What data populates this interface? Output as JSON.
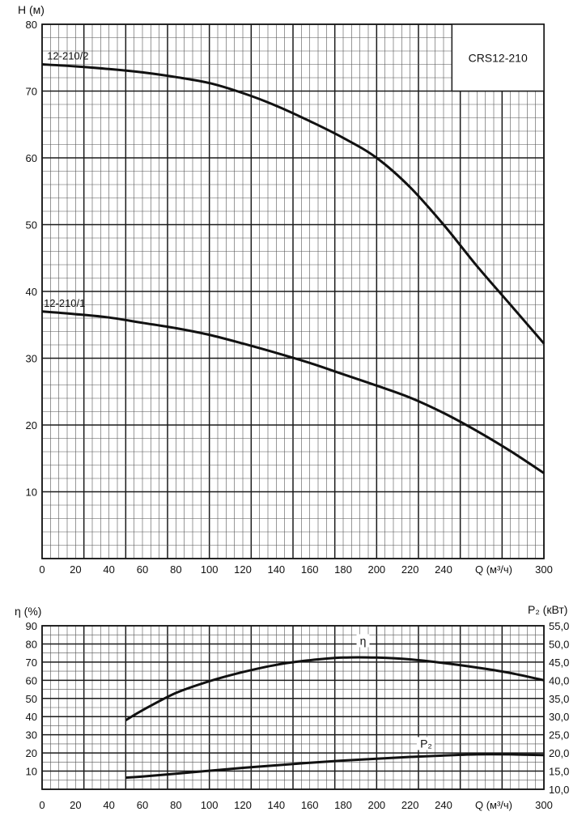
{
  "chart_data": [
    {
      "type": "line",
      "title": "",
      "model_label": "CRS12-210",
      "xlabel": "Q (м³/ч)",
      "ylabel": "H (м)",
      "xlim": [
        0,
        300
      ],
      "ylim": [
        0,
        80
      ],
      "x_ticks": [
        0,
        20,
        40,
        60,
        80,
        100,
        120,
        140,
        160,
        180,
        200,
        220,
        240,
        300
      ],
      "y_ticks": [
        0,
        10,
        20,
        30,
        40,
        50,
        60,
        70,
        80
      ],
      "grid": true,
      "series": [
        {
          "name": "12-210/2",
          "x": [
            0,
            20,
            40,
            60,
            80,
            100,
            120,
            140,
            160,
            180,
            200,
            220,
            240,
            260,
            280,
            300
          ],
          "y": [
            74,
            73.7,
            73.3,
            72.8,
            72.1,
            71.2,
            69.7,
            67.8,
            65.5,
            63,
            60,
            55.6,
            50,
            43.8,
            38,
            32.2
          ]
        },
        {
          "name": "12-210/1",
          "x": [
            0,
            20,
            40,
            60,
            80,
            100,
            120,
            140,
            160,
            180,
            200,
            220,
            240,
            260,
            280,
            300
          ],
          "y": [
            37,
            36.6,
            36.1,
            35.3,
            34.5,
            33.5,
            32.2,
            30.8,
            29.3,
            27.6,
            25.9,
            24.1,
            21.8,
            19.1,
            16.1,
            12.8
          ]
        }
      ]
    },
    {
      "type": "line",
      "title": "",
      "xlabel": "Q (м³/ч)",
      "ylabel_left": "η (%)",
      "ylabel_right": "P₂ (кВт)",
      "xlim": [
        0,
        300
      ],
      "ylim_left": [
        0,
        90
      ],
      "ylim_right": [
        10,
        55
      ],
      "x_ticks": [
        0,
        20,
        40,
        60,
        80,
        100,
        120,
        140,
        160,
        180,
        200,
        220,
        240,
        300
      ],
      "y_ticks_left": [
        10,
        20,
        30,
        40,
        50,
        60,
        70,
        80,
        90
      ],
      "y_ticks_right": [
        "10,0",
        "15,0",
        "20,0",
        "25,0",
        "30,0",
        "35,0",
        "40,0",
        "45,0",
        "50,0",
        "55,0"
      ],
      "grid": true,
      "series": [
        {
          "name": "η",
          "axis": "left",
          "x": [
            50,
            60,
            80,
            100,
            120,
            140,
            160,
            180,
            200,
            220,
            240,
            260,
            280,
            300
          ],
          "y": [
            38,
            43.5,
            53,
            59.5,
            64.5,
            68.5,
            71,
            72.5,
            72.5,
            71.5,
            69.5,
            67,
            64,
            60
          ]
        },
        {
          "name": "P₂",
          "axis": "right",
          "x": [
            50,
            60,
            80,
            100,
            120,
            140,
            160,
            180,
            200,
            220,
            240,
            260,
            280,
            300
          ],
          "y": [
            13.2,
            13.5,
            14.3,
            15.1,
            15.9,
            16.6,
            17.3,
            17.9,
            18.4,
            18.9,
            19.3,
            19.6,
            19.6,
            19.4
          ]
        }
      ]
    }
  ]
}
